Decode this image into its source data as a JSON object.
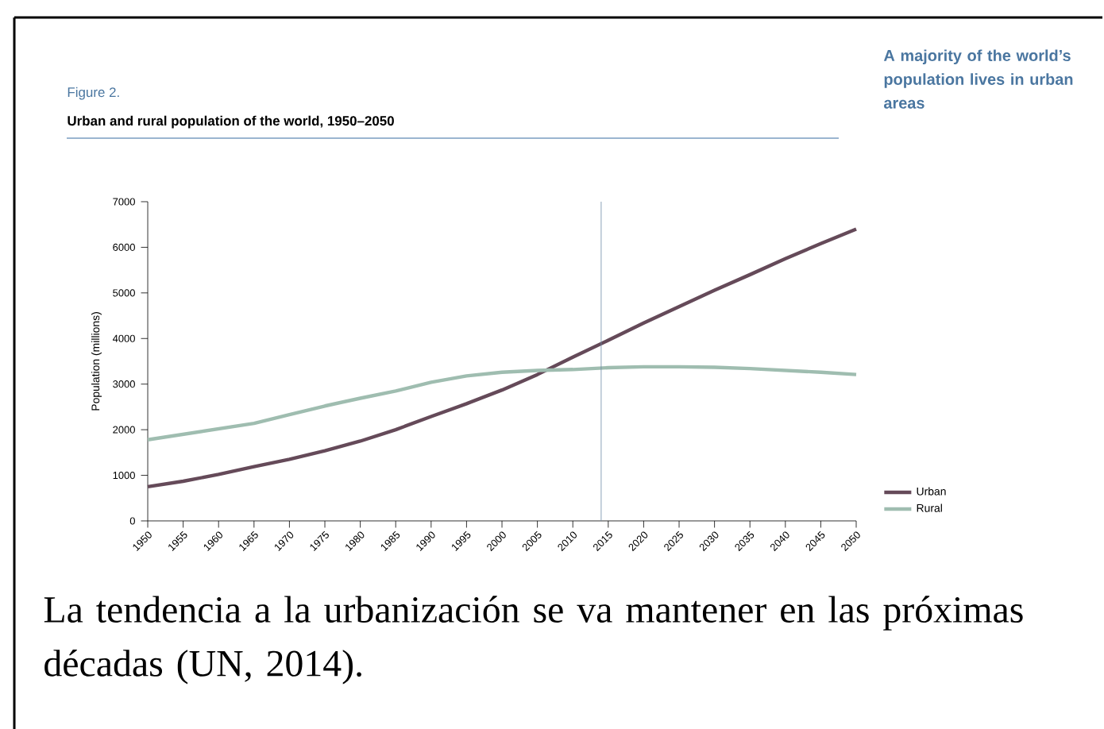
{
  "chart_data": {
    "type": "line",
    "subtitle": "Figure 2.",
    "title": "Urban and rural population of the world, 1950–2050",
    "ylabel": "Population (millions)",
    "annotations": [
      "A majority of the world’s population lives in urban areas",
      "La tendencia a la urbanización se va mantener en las próximas décadas (UN, 2014)."
    ],
    "x": [
      1950,
      1955,
      1960,
      1965,
      1970,
      1975,
      1980,
      1985,
      1990,
      1995,
      2000,
      2005,
      2010,
      2015,
      2020,
      2025,
      2030,
      2035,
      2040,
      2045,
      2050
    ],
    "series": [
      {
        "name": "Urban",
        "color": "#654a59",
        "values": [
          750,
          870,
          1020,
          1190,
          1350,
          1540,
          1750,
          2000,
          2290,
          2570,
          2870,
          3210,
          3590,
          3960,
          4340,
          4700,
          5060,
          5400,
          5750,
          6080,
          6400
        ]
      },
      {
        "name": "Rural",
        "color": "#9fbdb0",
        "values": [
          1780,
          1900,
          2020,
          2140,
          2330,
          2520,
          2690,
          2850,
          3040,
          3180,
          3260,
          3300,
          3320,
          3360,
          3380,
          3380,
          3370,
          3340,
          3300,
          3260,
          3210
        ]
      }
    ],
    "xlim": [
      1950,
      2050
    ],
    "xticks": [
      1950,
      1955,
      1960,
      1965,
      1970,
      1975,
      1980,
      1985,
      1990,
      1995,
      2000,
      2005,
      2010,
      2015,
      2020,
      2025,
      2030,
      2035,
      2040,
      2045,
      2050
    ],
    "ylim": [
      0,
      7000
    ],
    "yticks": [
      0,
      1000,
      2000,
      3000,
      4000,
      5000,
      6000,
      7000
    ],
    "ref_lines": [
      {
        "axis": "x",
        "value": 2014,
        "color": "#6f8aa6"
      }
    ],
    "grid": false,
    "legend": "bottom right",
    "marker": "none",
    "line_style": "solid"
  }
}
